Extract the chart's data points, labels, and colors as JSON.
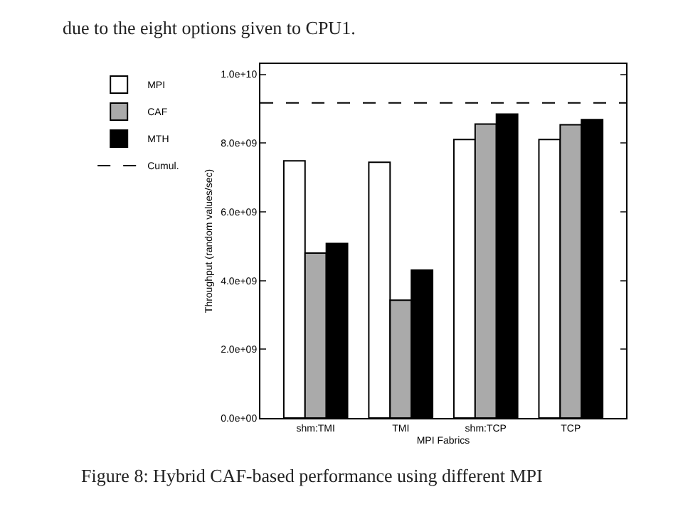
{
  "chart_data": {
    "type": "bar",
    "xlabel": "MPI Fabrics",
    "ylabel": "Throughput (random values/sec)",
    "categories": [
      "shm:TMI",
      "TMI",
      "shm:TCP",
      "TCP"
    ],
    "series": [
      {
        "name": "MPI",
        "color": "#ffffff",
        "values": [
          7480000000.0,
          7440000000.0,
          8100000000.0,
          8100000000.0
        ]
      },
      {
        "name": "CAF",
        "color": "#aaaaaa",
        "values": [
          4800000000.0,
          3430000000.0,
          8550000000.0,
          8530000000.0
        ]
      },
      {
        "name": "MTH",
        "color": "#000000",
        "values": [
          5080000000.0,
          4300000000.0,
          8840000000.0,
          8680000000.0
        ]
      }
    ],
    "ref_lines": [
      {
        "axis": "y",
        "value": 9170000000.0,
        "label": "Cumul.",
        "line_style": "dashed",
        "color": "#000000"
      }
    ],
    "ylim": [
      0,
      10300000000.0
    ],
    "yticks": [
      {
        "value": 0,
        "label": "0.0e+00"
      },
      {
        "value": 2000000000.0,
        "label": "2.0e+09"
      },
      {
        "value": 4000000000.0,
        "label": "4.0e+09"
      },
      {
        "value": 6000000000.0,
        "label": "6.0e+09"
      },
      {
        "value": 8000000000.0,
        "label": "8.0e+09"
      },
      {
        "value": 10000000000.0,
        "label": "1.0e+10"
      }
    ],
    "grid": false,
    "legend": "top left",
    "annotations": [
      "due to the eight options given to CPU1.",
      "Figure 8: Hybrid CAF-based performance using different MPI"
    ]
  }
}
